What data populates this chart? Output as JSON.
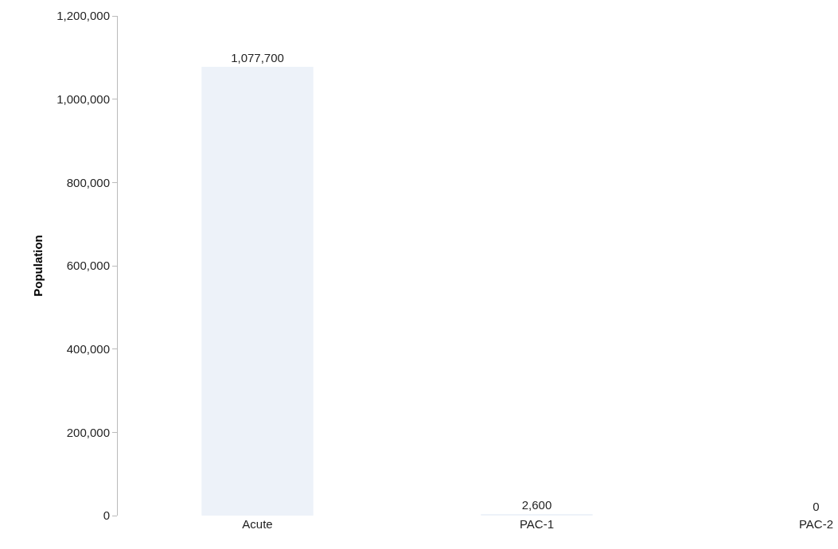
{
  "chart_data": {
    "type": "bar",
    "ylabel": "Population",
    "categories": [
      "Acute",
      "PAC-1",
      "PAC-2"
    ],
    "values": [
      1077700,
      2600,
      0
    ],
    "color": "#edf2f9",
    "value_labels": [
      "1,077,700",
      "2,600",
      "0"
    ],
    "grid": false,
    "ylim": [
      0,
      1200000
    ],
    "yticks": [
      {
        "value": 0,
        "label": "0"
      },
      {
        "value": 200000,
        "label": "200,000"
      },
      {
        "value": 400000,
        "label": "400,000"
      },
      {
        "value": 600000,
        "label": "600,000"
      },
      {
        "value": 800000,
        "label": "800,000"
      },
      {
        "value": 1000000,
        "label": "1,000,000"
      },
      {
        "value": 1200000,
        "label": "1,200,000"
      }
    ]
  }
}
